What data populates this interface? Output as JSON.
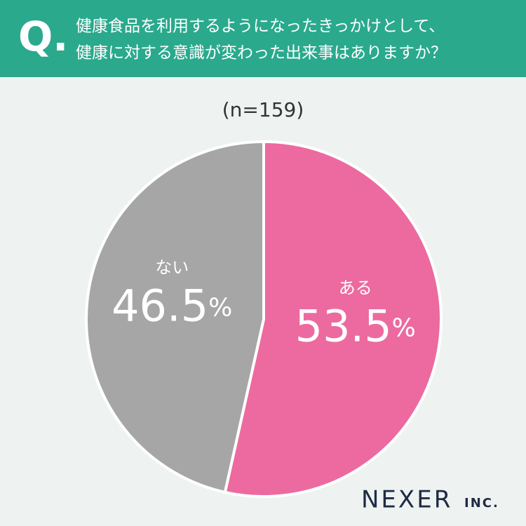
{
  "chart_data": {
    "type": "pie",
    "badge": "Q.",
    "title": [
      "健康食品を利用するようになったきっかけとして、",
      "健康に対する意識が変わった出来事はありますか？"
    ],
    "subtitle": "(n=159)",
    "categories": [
      "ある",
      "ない"
    ],
    "values": [
      53.5,
      46.5
    ],
    "value_labels": [
      "53.5%",
      "46.5%"
    ],
    "colors": [
      "#ec6a9f",
      "#a6a6a6"
    ],
    "logo": "NEXER",
    "logo_suffix": "INC."
  }
}
